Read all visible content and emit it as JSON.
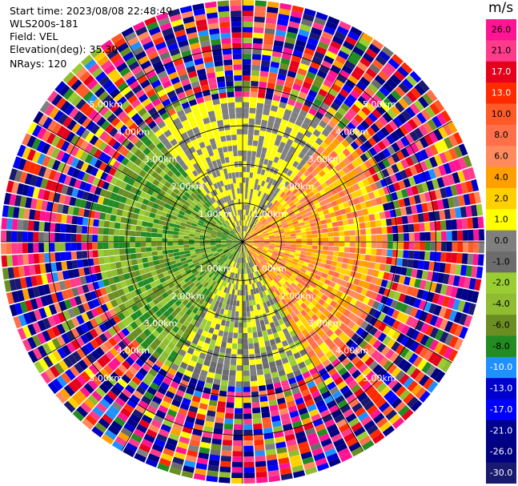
{
  "header": {
    "start_time": "Start time: 2023/08/08 22:48:49",
    "instrument": "WLS200s-181",
    "field": "Field: VEL",
    "elevation": "Elevation(deg): 35.30",
    "nrays": "NRays: 120"
  },
  "chart_data": {
    "type": "ppi",
    "field": "VEL",
    "unit": "m/s",
    "nrays": 120,
    "range_rings_km": [
      1,
      2,
      3,
      4,
      5
    ],
    "range_ring_labels": [
      "1.00km",
      "2.00km",
      "3.00km",
      "4.00km",
      "5.00km"
    ],
    "max_range_km": 5,
    "colorbar": {
      "unit": "m/s",
      "tick_labels": [
        "26.0",
        "21.0",
        "17.0",
        "13.0",
        "10.0",
        "8.0",
        "6.0",
        "4.0",
        "2.0",
        "1.0",
        "0.0",
        "-1.0",
        "-2.0",
        "-4.0",
        "-6.0",
        "-8.0",
        "-10.0",
        "-13.0",
        "-17.0",
        "-21.0",
        "-26.0",
        "-30.0"
      ],
      "bins": [
        {
          "min": 26,
          "max": 30,
          "color": "#ff1493"
        },
        {
          "min": 21,
          "max": 26,
          "color": "#ff3c8c"
        },
        {
          "min": 17,
          "max": 21,
          "color": "#e6001c"
        },
        {
          "min": 13,
          "max": 17,
          "color": "#ff2a00"
        },
        {
          "min": 10,
          "max": 13,
          "color": "#ff5a28"
        },
        {
          "min": 8,
          "max": 10,
          "color": "#ff6f4a"
        },
        {
          "min": 6,
          "max": 8,
          "color": "#ff8a5e"
        },
        {
          "min": 4,
          "max": 6,
          "color": "#ffa000"
        },
        {
          "min": 2,
          "max": 4,
          "color": "#ffd000"
        },
        {
          "min": 1,
          "max": 2,
          "color": "#ffff00"
        },
        {
          "min": 0,
          "max": 1,
          "color": "#7f7f7f"
        },
        {
          "min": -1,
          "max": 0,
          "color": "#6c6c6c"
        },
        {
          "min": -2,
          "max": -1,
          "color": "#9acd32"
        },
        {
          "min": -4,
          "max": -2,
          "color": "#8fbc30"
        },
        {
          "min": -6,
          "max": -4,
          "color": "#6b8e23"
        },
        {
          "min": -8,
          "max": -6,
          "color": "#228b22"
        },
        {
          "min": -10,
          "max": -8,
          "color": "#1e90ff"
        },
        {
          "min": -13,
          "max": -10,
          "color": "#0000cd"
        },
        {
          "min": -17,
          "max": -13,
          "color": "#0000ff"
        },
        {
          "min": -21,
          "max": -17,
          "color": "#00008b"
        },
        {
          "min": -26,
          "max": -21,
          "color": "#000080"
        },
        {
          "min": -30,
          "max": -26,
          "color": "#191970"
        }
      ]
    },
    "sectors": [
      {
        "direction": "east",
        "inner_km": 0,
        "outer_km": 3,
        "value_range": [
          1,
          10
        ]
      },
      {
        "direction": "west",
        "inner_km": 0,
        "outer_km": 3,
        "value_range": [
          -8,
          -1
        ]
      },
      {
        "direction": "north",
        "inner_km": 0,
        "outer_km": 3,
        "value_range": [
          0,
          2
        ]
      },
      {
        "direction": "south",
        "inner_km": 0,
        "outer_km": 3,
        "value_range": [
          -2,
          2
        ]
      },
      {
        "direction": "all",
        "inner_km": 3,
        "outer_km": 5,
        "value_range": [
          -30,
          30
        ]
      }
    ]
  }
}
